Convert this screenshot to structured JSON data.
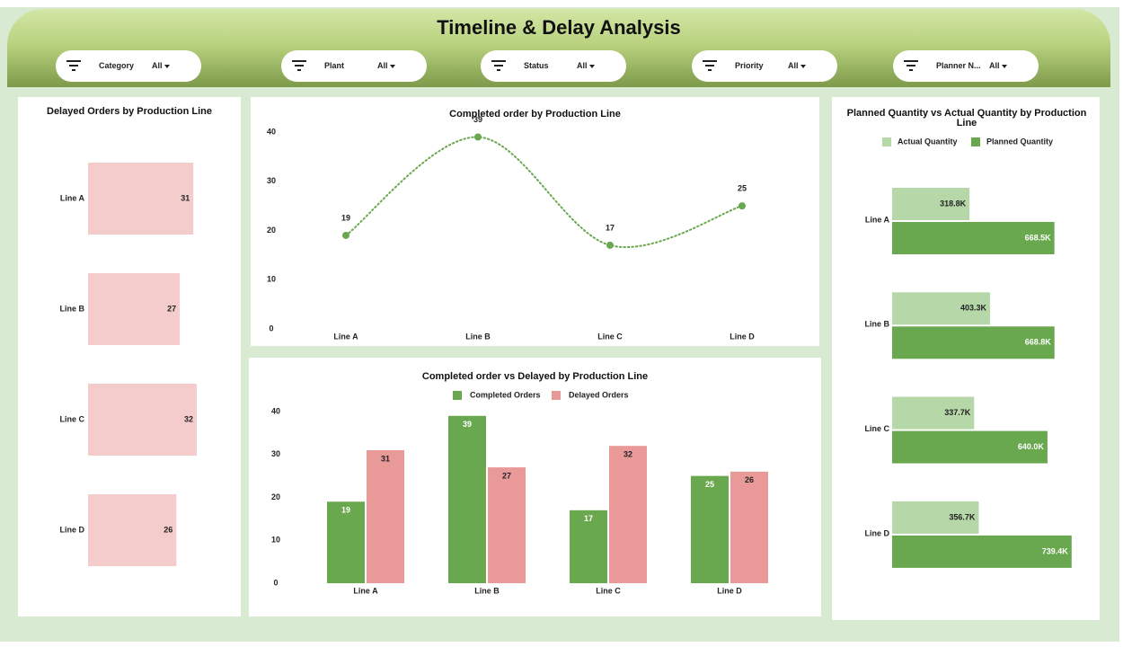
{
  "header": {
    "title": "Timeline & Delay Analysis",
    "filters": [
      {
        "label": "Category",
        "value": "All"
      },
      {
        "label": "Plant",
        "value": "All"
      },
      {
        "label": "Status",
        "value": "All"
      },
      {
        "label": "Priority",
        "value": "All"
      },
      {
        "label": "Planner N...",
        "value": "All"
      }
    ]
  },
  "chart_data": [
    {
      "type": "hbar",
      "title": "Delayed Orders by Production Line",
      "categories": [
        "Line A",
        "Line B",
        "Line C",
        "Line D"
      ],
      "values": [
        31,
        27,
        32,
        26
      ],
      "color": "#f4cccc"
    },
    {
      "type": "line",
      "title": "Completed order by Production Line",
      "categories": [
        "Line A",
        "Line B",
        "Line C",
        "Line D"
      ],
      "values": [
        19,
        39,
        17,
        25
      ],
      "color": "#6aa84f",
      "smooth": true,
      "line_style": "dotted",
      "ylim": [
        0,
        40
      ],
      "yticks": [
        0,
        10,
        20,
        30,
        40
      ]
    },
    {
      "type": "bar",
      "title": "Completed order vs Delayed by Production Line",
      "categories": [
        "Line A",
        "Line B",
        "Line C",
        "Line D"
      ],
      "series": [
        {
          "name": "Completed Orders",
          "color": "#6aa84f",
          "values": [
            19,
            39,
            17,
            25
          ]
        },
        {
          "name": "Delayed Orders",
          "color": "#ea9999",
          "values": [
            31,
            27,
            32,
            26
          ]
        }
      ],
      "ylim": [
        0,
        40
      ],
      "yticks": [
        0,
        10,
        20,
        30,
        40
      ],
      "legend": "top"
    },
    {
      "type": "hbar",
      "title": "Planned Quantity vs Actual Quantity by Production Line",
      "categories": [
        "Line A",
        "Line B",
        "Line C",
        "Line D"
      ],
      "series": [
        {
          "name": "Actual Quantity",
          "color": "#b6d7a8",
          "values": [
            318800,
            403300,
            337700,
            356700
          ],
          "value_labels": [
            "318.8K",
            "403.3K",
            "337.7K",
            "356.7K"
          ]
        },
        {
          "name": "Planned Quantity",
          "color": "#6aa84f",
          "values": [
            668500,
            668800,
            640000,
            739400
          ],
          "value_labels": [
            "668.5K",
            "668.8K",
            "640.0K",
            "739.4K"
          ]
        }
      ],
      "legend": "top"
    }
  ]
}
